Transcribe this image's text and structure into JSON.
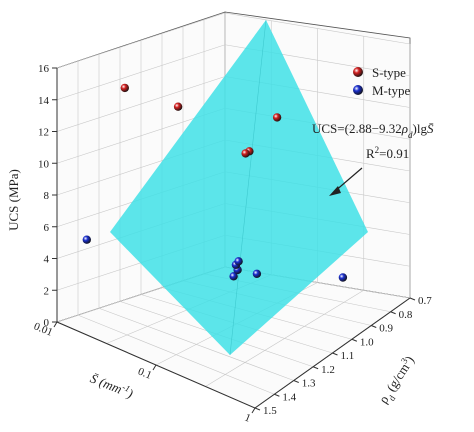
{
  "chart_data": {
    "type": "scatter",
    "title": "",
    "zlabel": "UCS  (MPa)",
    "xlabel_main": "S̄ (mm",
    "xlabel_sup": "-1",
    "xlabel_end": ")",
    "ylabel_main": "ρ",
    "ylabel_sub": "d",
    "ylabel_rest": " (g/cm",
    "ylabel_sup": "3",
    "ylabel_end": ")",
    "x_scale": "log",
    "xlim": [
      0.01,
      1
    ],
    "ylim": [
      0.7,
      1.5
    ],
    "zlim": [
      0,
      16
    ],
    "x_ticks": [
      "0.01",
      "0.1",
      "1"
    ],
    "y_ticks": [
      "0.7",
      "0.8",
      "0.9",
      "1.0",
      "1.1",
      "1.2",
      "1.3",
      "1.4",
      "1.5"
    ],
    "z_ticks": [
      "0",
      "2",
      "4",
      "6",
      "8",
      "10",
      "12",
      "14",
      "16"
    ],
    "grid": true,
    "legend_position": "top-right",
    "series": [
      {
        "name": "S-type",
        "color": "#d42020",
        "points": [
          {
            "x": 0.03,
            "y": 1.4,
            "z": 15.5
          },
          {
            "x": 0.35,
            "y": 1.3,
            "z": 13.4
          },
          {
            "x": 0.04,
            "y": 1.2,
            "z": 13.5
          },
          {
            "x": 0.2,
            "y": 1.2,
            "z": 12.0
          },
          {
            "x": 0.1,
            "y": 0.9,
            "z": 11.7
          }
        ]
      },
      {
        "name": "M-type",
        "color": "#1a2fd0",
        "points": [
          {
            "x": 0.02,
            "y": 1.5,
            "z": 6.0
          },
          {
            "x": 0.15,
            "y": 1.2,
            "z": 4.0
          },
          {
            "x": 0.08,
            "y": 1.05,
            "z": 2.9
          },
          {
            "x": 0.06,
            "y": 1.0,
            "z": 2.7
          },
          {
            "x": 0.1,
            "y": 1.0,
            "z": 2.5
          },
          {
            "x": 0.05,
            "y": 0.95,
            "z": 2.5
          },
          {
            "x": 0.5,
            "y": 0.9,
            "z": 2.6
          }
        ]
      }
    ],
    "surface": {
      "color": "#3fe0e6",
      "opacity": 0.85
    },
    "annotations": {
      "equation_pre": "UCS=(2.88−9.32",
      "equation_rho": "ρ",
      "equation_sub": "d",
      "equation_post": ")lg",
      "equation_var": "S̄",
      "r2_pre": "R",
      "r2_sup": "2",
      "r2_post": "=0.91"
    }
  }
}
